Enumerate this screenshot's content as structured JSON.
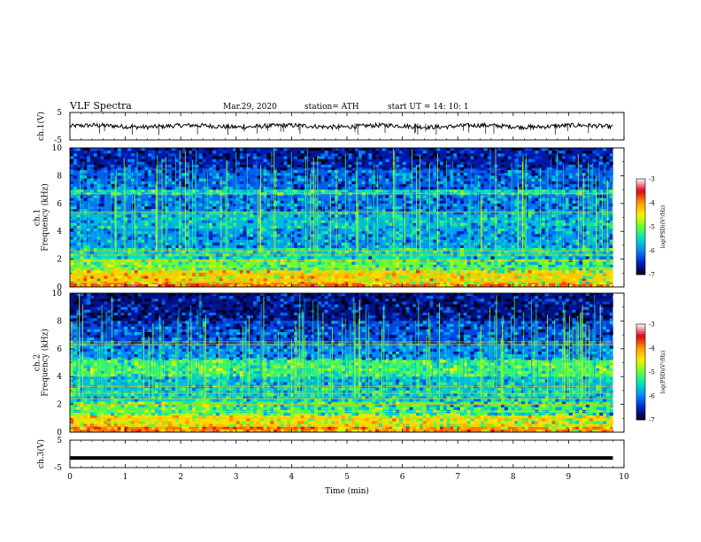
{
  "header": {
    "title": "VLF  Spectra",
    "date": "Mar.29, 2020",
    "station": "station= ATH",
    "start": "start  UT  =    14: 10: 1"
  },
  "colors": {
    "spectrogram_scale": [
      "#ffffff",
      "#e0001a",
      "#ff9900",
      "#ffee00",
      "#66ff33",
      "#00e0c0",
      "#0088ff",
      "#001ec8",
      "#000020"
    ],
    "trace": "#000000"
  },
  "chart_data": [
    {
      "type": "line",
      "name": "ch1-waveform",
      "ylabel": "ch.1(V)",
      "ylim": [
        -5,
        5
      ],
      "yticks": [
        "5",
        "-5"
      ],
      "mean_level": 0.0,
      "amplitude": 0.8
    },
    {
      "type": "heatmap",
      "name": "ch1-spectrogram",
      "ylabel": "ch.1\nFrequency (kHz)",
      "ylim": [
        0,
        10
      ],
      "yticks": [
        "0",
        "2",
        "4",
        "6",
        "8",
        "10"
      ],
      "xlim": [
        0,
        10
      ],
      "data_end_min": 9.8,
      "colorbar": {
        "label": "log(PSD)(V²/Hz)",
        "range": [
          -7,
          -3
        ],
        "ticks": [
          "-3",
          "-4",
          "-5",
          "-6",
          "-7"
        ]
      },
      "bands": [
        {
          "f0": 0,
          "f1": 0.3,
          "level": -3.8
        },
        {
          "f0": 0.3,
          "f1": 1.2,
          "level": -4.3
        },
        {
          "f0": 1.2,
          "f1": 2.0,
          "level": -5.0
        },
        {
          "f0": 2.0,
          "f1": 2.8,
          "level": -5.5
        },
        {
          "f0": 2.8,
          "f1": 4.2,
          "level": -5.9
        },
        {
          "f0": 4.2,
          "f1": 5.4,
          "level": -5.7
        },
        {
          "f0": 5.4,
          "f1": 6.7,
          "level": -6.1
        },
        {
          "f0": 6.7,
          "f1": 7.0,
          "level": -5.5
        },
        {
          "f0": 7.0,
          "f1": 8.5,
          "level": -6.2
        },
        {
          "f0": 8.5,
          "f1": 10,
          "level": -6.6
        }
      ],
      "lines_khz": [
        0.4,
        0.9,
        1.4,
        1.9,
        2.3,
        2.6,
        5.4,
        6.7
      ]
    },
    {
      "type": "heatmap",
      "name": "ch2-spectrogram",
      "ylabel": "ch.2\nFrequency (kHz)",
      "ylim": [
        0,
        10
      ],
      "yticks": [
        "0",
        "2",
        "4",
        "6",
        "8",
        "10"
      ],
      "xlim": [
        0,
        10
      ],
      "data_end_min": 9.8,
      "colorbar": {
        "label": "log(PSD)(V²/Hz)",
        "range": [
          -7,
          -3
        ],
        "ticks": [
          "-3",
          "-4",
          "-5",
          "-6",
          "-7"
        ]
      },
      "bands": [
        {
          "f0": 0,
          "f1": 0.4,
          "level": -3.9
        },
        {
          "f0": 0.4,
          "f1": 1.3,
          "level": -4.4
        },
        {
          "f0": 1.3,
          "f1": 2.2,
          "level": -5.1
        },
        {
          "f0": 2.2,
          "f1": 3.3,
          "level": -5.6
        },
        {
          "f0": 3.3,
          "f1": 4.0,
          "level": -5.7
        },
        {
          "f0": 4.0,
          "f1": 5.3,
          "level": -5.2
        },
        {
          "f0": 5.3,
          "f1": 6.5,
          "level": -6.0
        },
        {
          "f0": 6.5,
          "f1": 8.0,
          "level": -6.3
        },
        {
          "f0": 8.0,
          "f1": 10,
          "level": -6.7
        }
      ],
      "lines_khz": [
        0.5,
        1.0,
        1.5,
        2.0,
        2.4,
        2.8,
        3.3,
        6.3,
        6.5
      ]
    },
    {
      "type": "line",
      "name": "ch3-waveform",
      "ylabel": "ch.3(V)",
      "ylim": [
        -5,
        5
      ],
      "yticks": [
        "5",
        "-5"
      ],
      "mean_level": -1.5,
      "amplitude": 0.1
    }
  ],
  "xaxis": {
    "label": "Time  (min)",
    "ticks": [
      "0",
      "1",
      "2",
      "3",
      "4",
      "5",
      "6",
      "7",
      "8",
      "9",
      "10"
    ],
    "xlim": [
      0,
      10
    ]
  }
}
